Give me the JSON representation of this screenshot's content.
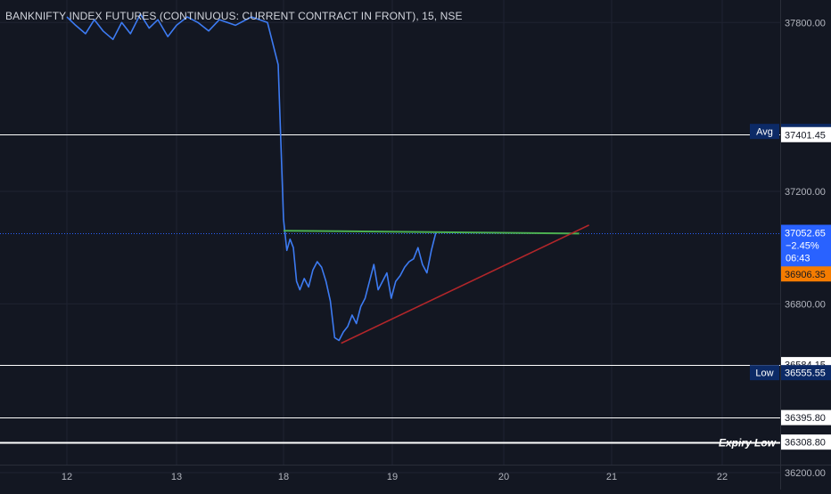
{
  "title": "BANKNIFTY INDEX FUTURES (CONTINUOUS: CURRENT CONTRACT IN FRONT), 15, NSE",
  "colors": {
    "background": "#131722",
    "grid": "#1f2331",
    "price_line": "#2962ff",
    "series_line": "#3d7bf2",
    "support_trendline": "#b2262a",
    "resistance_line": "#4caf50",
    "axis_text": "#b2b5be",
    "label_bg": "#ffffff",
    "label_text": "#131722",
    "dark_label_bg": "#0c2a66",
    "current_price_bg": "#2962ff",
    "orange_label_bg": "#f57c00"
  },
  "chart_data": {
    "type": "line",
    "title": "BANKNIFTY INDEX FUTURES (CONTINUOUS: CURRENT CONTRACT IN FRONT), 15, NSE",
    "xlabel": "",
    "ylabel": "",
    "x_ticks": [
      "12",
      "13",
      "18",
      "19",
      "20",
      "21",
      "22"
    ],
    "y_ticks": [
      "37800.00",
      "37200.00",
      "36800.00",
      "36200.00"
    ],
    "ylim": [
      36140,
      37880
    ],
    "grid": true,
    "series": [
      {
        "values": [
          [
            0.0,
            37820
          ],
          [
            0.08,
            37790
          ],
          [
            0.17,
            37760
          ],
          [
            0.25,
            37810
          ],
          [
            0.33,
            37770
          ],
          [
            0.42,
            37740
          ],
          [
            0.5,
            37800
          ],
          [
            0.58,
            37760
          ],
          [
            0.67,
            37830
          ],
          [
            0.75,
            37780
          ],
          [
            0.83,
            37810
          ],
          [
            0.92,
            37750
          ],
          [
            1.0,
            37790
          ],
          [
            1.1,
            37820
          ],
          [
            1.2,
            37800
          ],
          [
            1.3,
            37770
          ],
          [
            1.4,
            37810
          ],
          [
            1.55,
            37790
          ],
          [
            1.7,
            37820
          ],
          [
            1.85,
            37800
          ],
          [
            1.95,
            37650
          ],
          [
            2.0,
            37100
          ],
          [
            2.03,
            36990
          ],
          [
            2.06,
            37030
          ],
          [
            2.09,
            37000
          ],
          [
            2.12,
            36880
          ],
          [
            2.15,
            36850
          ],
          [
            2.19,
            36890
          ],
          [
            2.23,
            36860
          ],
          [
            2.27,
            36920
          ],
          [
            2.31,
            36950
          ],
          [
            2.35,
            36930
          ],
          [
            2.39,
            36880
          ],
          [
            2.43,
            36810
          ],
          [
            2.47,
            36680
          ],
          [
            2.51,
            36670
          ],
          [
            2.55,
            36700
          ],
          [
            2.59,
            36720
          ],
          [
            2.63,
            36760
          ],
          [
            2.67,
            36730
          ],
          [
            2.71,
            36790
          ],
          [
            2.75,
            36820
          ],
          [
            2.79,
            36880
          ],
          [
            2.83,
            36940
          ],
          [
            2.87,
            36850
          ],
          [
            2.91,
            36880
          ],
          [
            2.95,
            36910
          ],
          [
            2.99,
            36820
          ],
          [
            3.03,
            36880
          ],
          [
            3.07,
            36900
          ],
          [
            3.11,
            36930
          ],
          [
            3.15,
            36950
          ],
          [
            3.19,
            36960
          ],
          [
            3.23,
            37000
          ],
          [
            3.27,
            36940
          ],
          [
            3.31,
            36910
          ],
          [
            3.35,
            36990
          ],
          [
            3.39,
            37052.65
          ]
        ]
      }
    ],
    "trendlines": [
      {
        "name": "resistance",
        "from": [
          2.0,
          37060
        ],
        "to": [
          4.7,
          37050
        ]
      },
      {
        "name": "support",
        "from": [
          2.53,
          36660
        ],
        "to": [
          4.79,
          37080
        ]
      }
    ],
    "horizontal_levels": [
      {
        "label": "Avg",
        "value": "37412.85",
        "style": "dark"
      },
      {
        "label": "",
        "value": "37401.45",
        "style": "light",
        "line": true
      },
      {
        "label": "",
        "value": "37052.65",
        "style": "current",
        "extra": [
          "−2.45%",
          "06:43"
        ]
      },
      {
        "label": "",
        "value": "36906.35",
        "style": "orange"
      },
      {
        "label": "",
        "value": "36584.15",
        "style": "light",
        "line": true
      },
      {
        "label": "Low",
        "value": "36555.55",
        "style": "dark"
      },
      {
        "label": "",
        "value": "36395.80",
        "style": "light",
        "line": true
      },
      {
        "label": "Expiry Low",
        "value": "36308.80",
        "style": "light",
        "line": true
      }
    ]
  }
}
